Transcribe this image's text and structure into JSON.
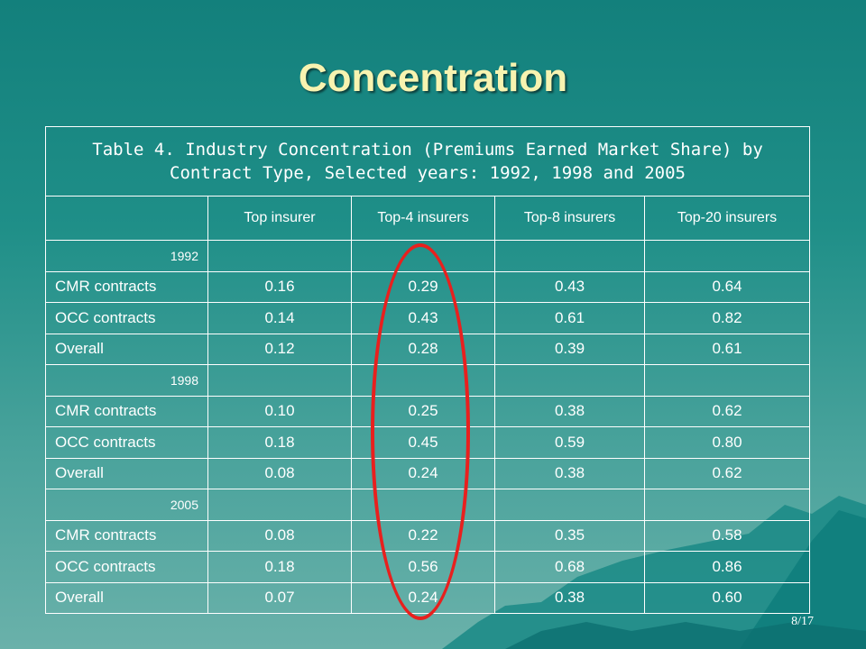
{
  "slide": {
    "title": "Concentration",
    "page_number": "8/17"
  },
  "table": {
    "caption": "Table 4. Industry Concentration (Premiums Earned Market Share) by Contract Type, Selected years: 1992, 1998 and 2005",
    "columns": [
      "",
      "Top insurer",
      "Top-4 insurers",
      "Top-8 insurers",
      "Top-20 insurers"
    ],
    "groups": [
      {
        "year": "1992",
        "rows": [
          {
            "label": "CMR contracts",
            "values": [
              "0.16",
              "0.29",
              "0.43",
              "0.64"
            ]
          },
          {
            "label": "OCC contracts",
            "values": [
              "0.14",
              "0.43",
              "0.61",
              "0.82"
            ]
          },
          {
            "label": "Overall",
            "values": [
              "0.12",
              "0.28",
              "0.39",
              "0.61"
            ]
          }
        ]
      },
      {
        "year": "1998",
        "rows": [
          {
            "label": "CMR contracts",
            "values": [
              "0.10",
              "0.25",
              "0.38",
              "0.62"
            ]
          },
          {
            "label": "OCC contracts",
            "values": [
              "0.18",
              "0.45",
              "0.59",
              "0.80"
            ]
          },
          {
            "label": "Overall",
            "values": [
              "0.08",
              "0.24",
              "0.38",
              "0.62"
            ]
          }
        ]
      },
      {
        "year": "2005",
        "rows": [
          {
            "label": "CMR contracts",
            "values": [
              "0.08",
              "0.22",
              "0.35",
              "0.58"
            ]
          },
          {
            "label": "OCC contracts",
            "values": [
              "0.18",
              "0.56",
              "0.68",
              "0.86"
            ]
          },
          {
            "label": "Overall",
            "values": [
              "0.07",
              "0.24",
              "0.38",
              "0.60"
            ]
          }
        ]
      }
    ]
  },
  "colors": {
    "title": "#f7f3b0",
    "highlight_circle": "#e8201e",
    "background_top": "#13807c"
  }
}
